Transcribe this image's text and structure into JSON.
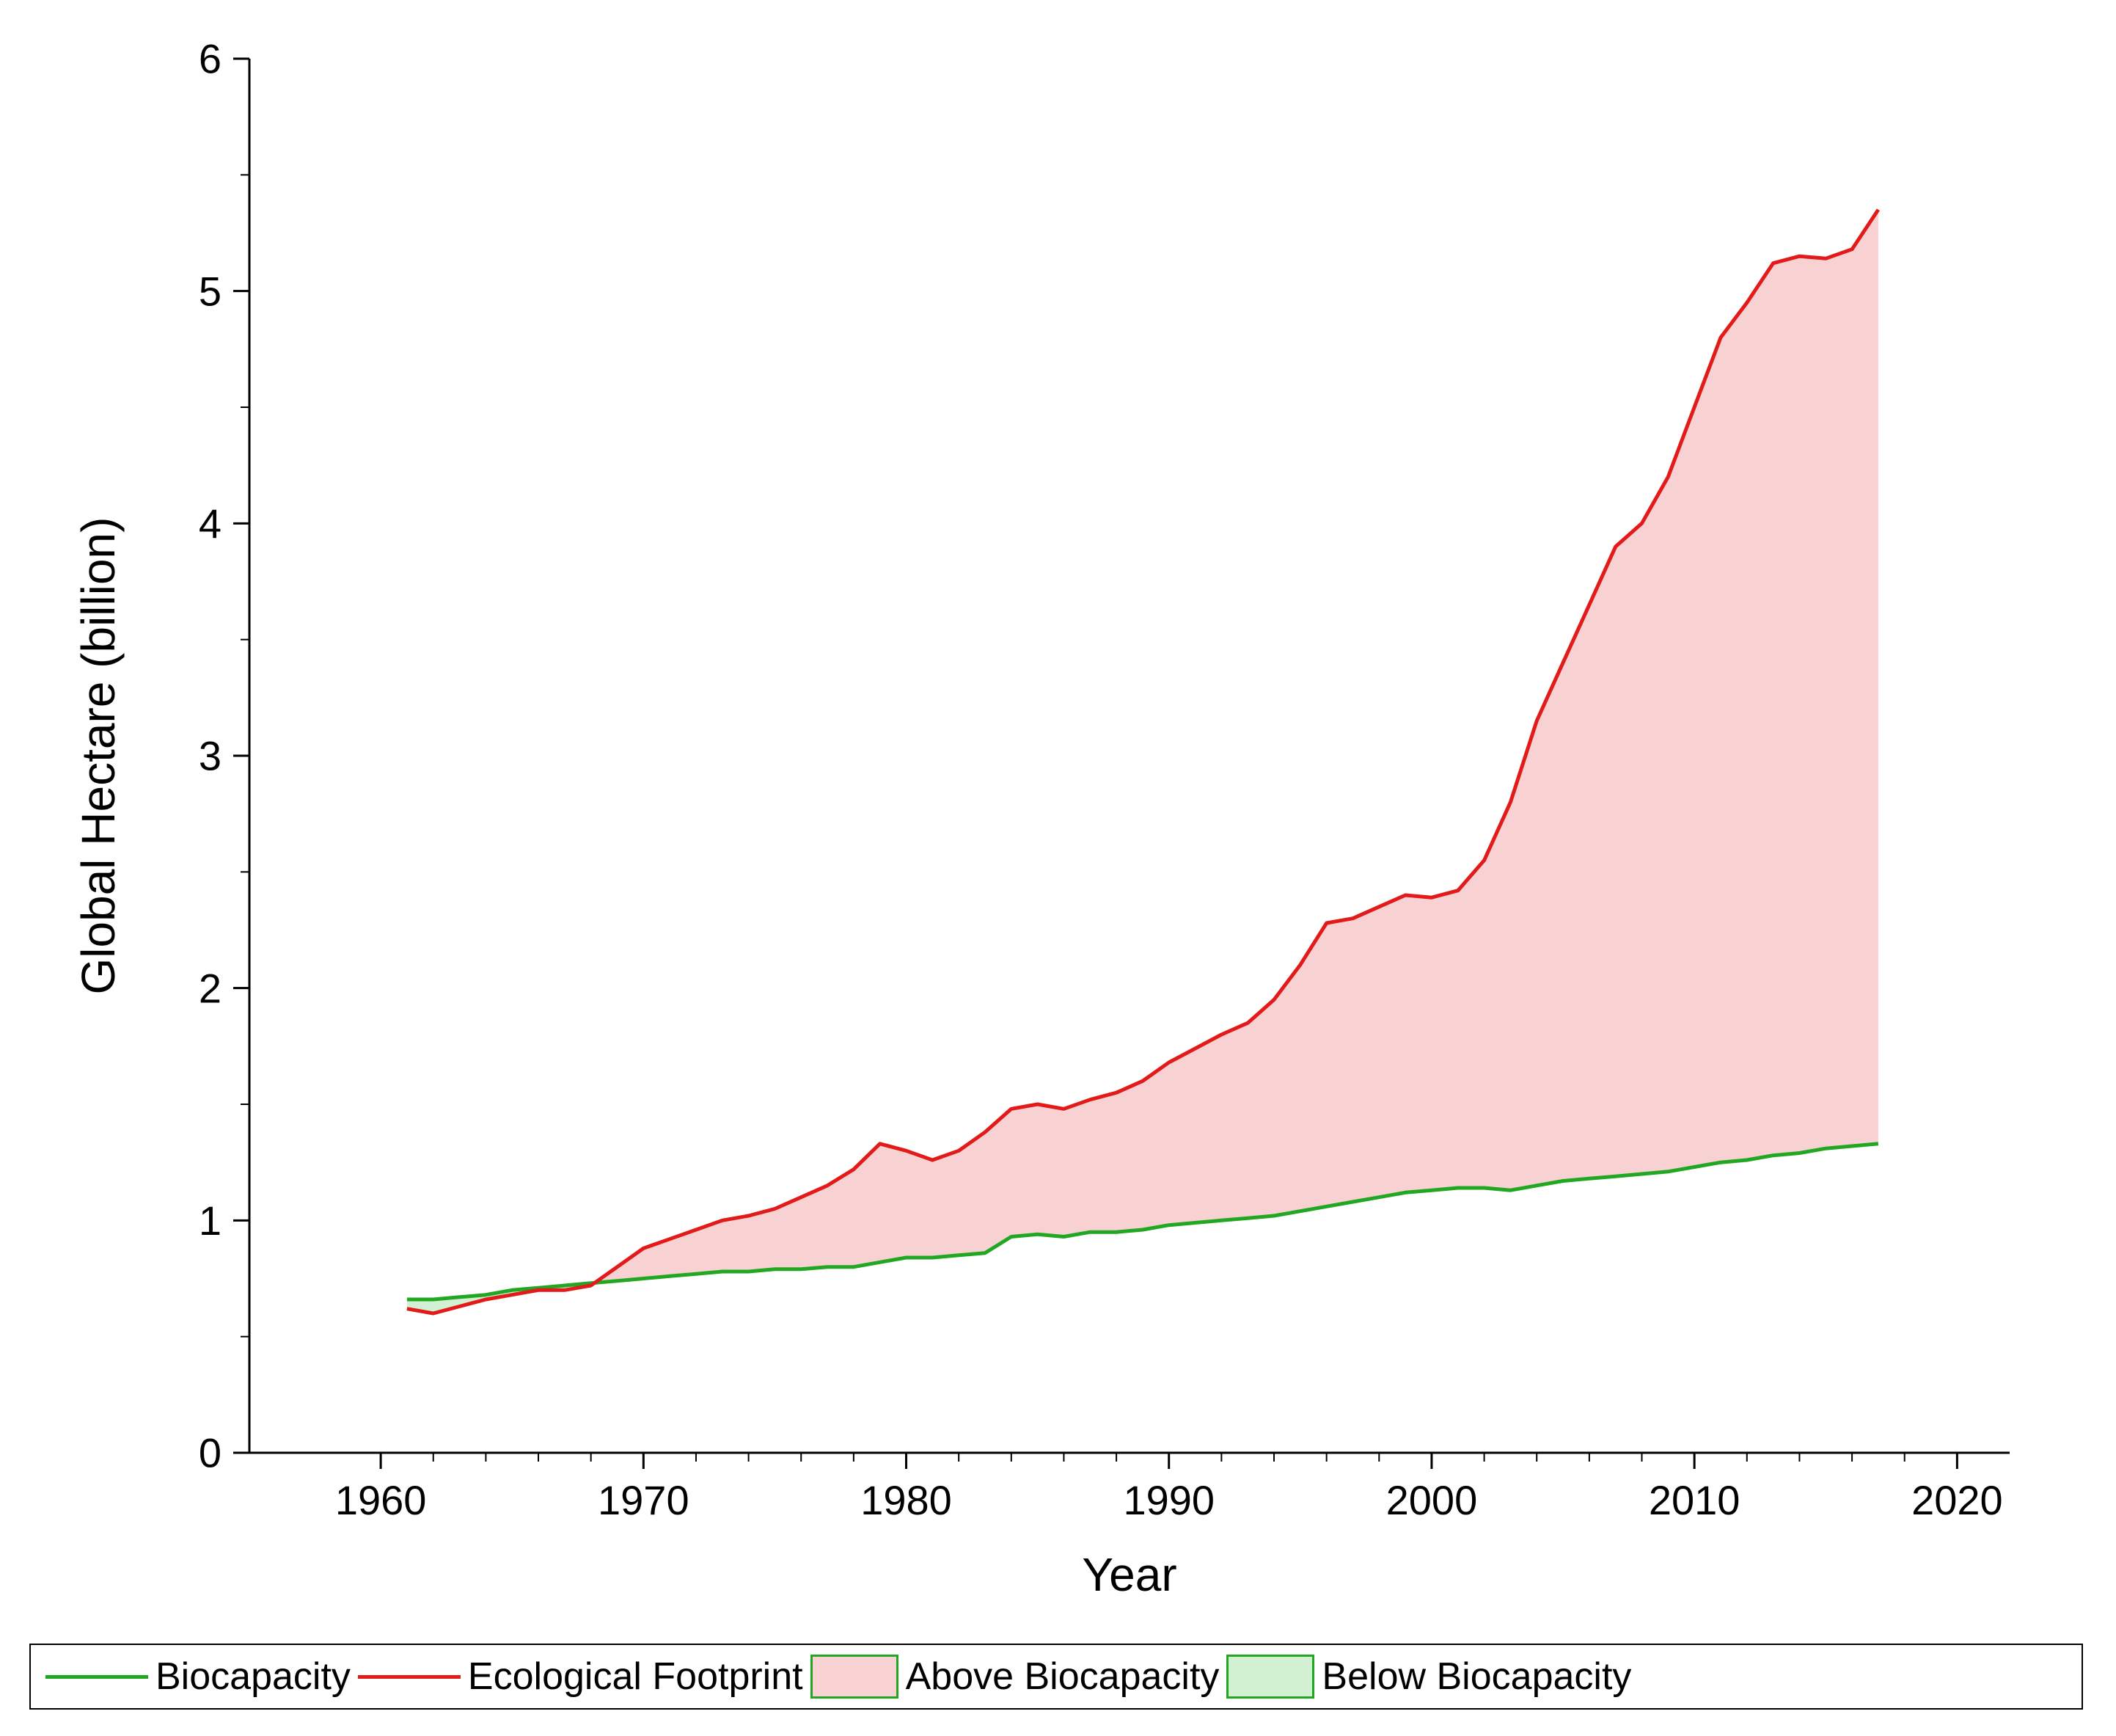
{
  "chart": {
    "type": "line-area",
    "background_color": "#ffffff",
    "axis_color": "#000000",
    "axis_line_width": 3,
    "tick_length_major": 22,
    "tick_length_minor": 12,
    "tick_label_fontsize": 56,
    "axis_label_fontsize": 64,
    "x": {
      "label": "Year",
      "min": 1955,
      "max": 2022,
      "major_ticks": [
        1960,
        1970,
        1980,
        1990,
        2000,
        2010,
        2020
      ],
      "minor_step": 2
    },
    "y": {
      "label": "Global Hectare (billion)",
      "min": 0,
      "max": 6,
      "major_ticks": [
        0,
        1,
        2,
        3,
        4,
        5,
        6
      ],
      "minor_step": 0.5
    },
    "series": {
      "biocapacity": {
        "label": "Biocapacity",
        "color": "#22a722",
        "line_width": 5,
        "years": [
          1961,
          1962,
          1963,
          1964,
          1965,
          1966,
          1967,
          1968,
          1969,
          1970,
          1971,
          1972,
          1973,
          1974,
          1975,
          1976,
          1977,
          1978,
          1979,
          1980,
          1981,
          1982,
          1983,
          1984,
          1985,
          1986,
          1987,
          1988,
          1989,
          1990,
          1991,
          1992,
          1993,
          1994,
          1995,
          1996,
          1997,
          1998,
          1999,
          2000,
          2001,
          2002,
          2003,
          2004,
          2005,
          2006,
          2007,
          2008,
          2009,
          2010,
          2011,
          2012,
          2013,
          2014,
          2015,
          2016,
          2017
        ],
        "values": [
          0.66,
          0.66,
          0.67,
          0.68,
          0.7,
          0.71,
          0.72,
          0.73,
          0.74,
          0.75,
          0.76,
          0.77,
          0.78,
          0.78,
          0.79,
          0.79,
          0.8,
          0.8,
          0.82,
          0.84,
          0.84,
          0.85,
          0.86,
          0.93,
          0.94,
          0.93,
          0.95,
          0.95,
          0.96,
          0.98,
          0.99,
          1.0,
          1.01,
          1.02,
          1.04,
          1.06,
          1.08,
          1.1,
          1.12,
          1.13,
          1.14,
          1.14,
          1.13,
          1.15,
          1.17,
          1.18,
          1.19,
          1.2,
          1.21,
          1.23,
          1.25,
          1.26,
          1.28,
          1.29,
          1.31,
          1.32,
          1.33
        ]
      },
      "ecological_footprint": {
        "label": "Ecological Footprint",
        "color": "#e31a1a",
        "line_width": 5,
        "years": [
          1961,
          1962,
          1963,
          1964,
          1965,
          1966,
          1967,
          1968,
          1969,
          1970,
          1971,
          1972,
          1973,
          1974,
          1975,
          1976,
          1977,
          1978,
          1979,
          1980,
          1981,
          1982,
          1983,
          1984,
          1985,
          1986,
          1987,
          1988,
          1989,
          1990,
          1991,
          1992,
          1993,
          1994,
          1995,
          1996,
          1997,
          1998,
          1999,
          2000,
          2001,
          2002,
          2003,
          2004,
          2005,
          2006,
          2007,
          2008,
          2009,
          2010,
          2011,
          2012,
          2013,
          2014,
          2015,
          2016,
          2017
        ],
        "values": [
          0.62,
          0.6,
          0.63,
          0.66,
          0.68,
          0.7,
          0.7,
          0.72,
          0.8,
          0.88,
          0.92,
          0.96,
          1.0,
          1.02,
          1.05,
          1.1,
          1.15,
          1.22,
          1.33,
          1.3,
          1.26,
          1.3,
          1.38,
          1.48,
          1.5,
          1.48,
          1.52,
          1.55,
          1.6,
          1.68,
          1.74,
          1.8,
          1.85,
          1.95,
          2.1,
          2.28,
          2.3,
          2.35,
          2.4,
          2.39,
          2.42,
          2.55,
          2.8,
          3.15,
          3.4,
          3.65,
          3.9,
          4.0,
          4.2,
          4.5,
          4.8,
          4.95,
          5.12,
          5.15,
          5.14,
          5.18,
          5.35
        ]
      }
    },
    "fills": {
      "above": {
        "label": "Above Biocapacity",
        "fill_color": "#f8d2d2",
        "border_color": "#22a722",
        "border_width": 2
      },
      "below": {
        "label": "Below Biocapacity",
        "fill_color": "#d2f0d2",
        "border_color": "#22a722",
        "border_width": 2
      }
    }
  },
  "legend": {
    "border_color": "#000000",
    "fontsize": 52,
    "items": [
      {
        "kind": "line",
        "label": "Biocapacity",
        "color": "#22a722"
      },
      {
        "kind": "line",
        "label": "Ecological Footprint",
        "color": "#e31a1a"
      },
      {
        "kind": "swatch",
        "label": "Above Biocapacity",
        "fill": "#f8d2d2",
        "border": "#22a722"
      },
      {
        "kind": "swatch",
        "label": "Below Biocapacity",
        "fill": "#d2f0d2",
        "border": "#22a722"
      }
    ]
  }
}
